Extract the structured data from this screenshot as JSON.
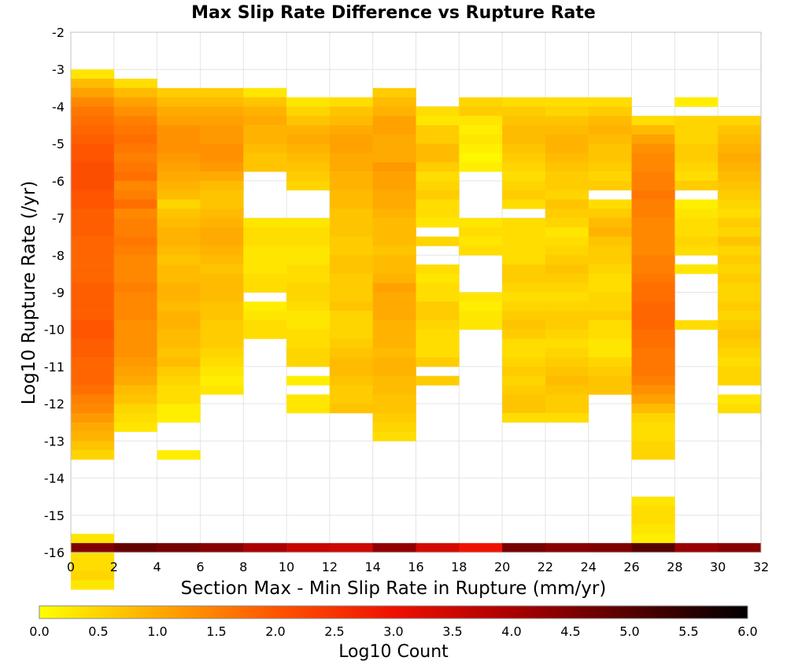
{
  "chart_data": {
    "type": "heatmap",
    "title": "Max Slip Rate Difference vs Rupture Rate",
    "xlabel": "Section Max - Min Slip Rate in Rupture (mm/yr)",
    "ylabel": "Log10 Rupture Rate (/yr)",
    "xlim": [
      0,
      32
    ],
    "ylim": [
      -16,
      -2
    ],
    "x_ticks": [
      "0",
      "2",
      "4",
      "6",
      "8",
      "10",
      "12",
      "14",
      "16",
      "18",
      "20",
      "22",
      "24",
      "26",
      "28",
      "30",
      "32"
    ],
    "y_ticks": [
      "-2",
      "-3",
      "-4",
      "-5",
      "-6",
      "-7",
      "-8",
      "-9",
      "-10",
      "-11",
      "-12",
      "-13",
      "-14",
      "-15",
      "-16"
    ],
    "x_bin_width": 2,
    "y_bin_height": 0.25,
    "grid": true,
    "colorbar": {
      "label": "Log10 Count",
      "min": 0,
      "max": 6,
      "ticks": [
        "0.0",
        "0.5",
        "1.0",
        "1.5",
        "2.0",
        "2.5",
        "3.0",
        "3.5",
        "4.0",
        "4.5",
        "5.0",
        "5.5",
        "6.0"
      ],
      "colors": [
        "#ffff00",
        "#ffaa00",
        "#ff5500",
        "#ee1100",
        "#aa0000",
        "#550000",
        "#000000"
      ]
    },
    "columns": [
      {
        "x_start": 0,
        "y_top": -3.0,
        "values": [
          0.3,
          0.8,
          1.1,
          1.4,
          1.6,
          1.7,
          1.8,
          1.9,
          2.0,
          2.0,
          2.1,
          2.1,
          2.1,
          2.0,
          2.0,
          1.9,
          1.9,
          1.9,
          1.8,
          1.8,
          1.8,
          1.8,
          1.8,
          1.9,
          1.9,
          1.9,
          1.9,
          2.0,
          2.0,
          1.9,
          1.9,
          1.8,
          1.8,
          1.8,
          1.7,
          1.5,
          1.4,
          1.2,
          1.0,
          0.9,
          0.7,
          0.5,
          null,
          null,
          null,
          null,
          null,
          null,
          null,
          null,
          0.3,
          0.4,
          0.4,
          0.4,
          0.5,
          0.3
        ]
      },
      {
        "x_start": 2,
        "y_top": -3.25,
        "values": [
          0.4,
          0.8,
          1.1,
          1.3,
          1.5,
          1.6,
          1.7,
          1.6,
          1.5,
          1.6,
          1.7,
          1.4,
          1.5,
          1.7,
          1.4,
          1.5,
          1.5,
          1.6,
          1.5,
          1.4,
          1.4,
          1.4,
          1.5,
          1.4,
          1.4,
          1.4,
          1.3,
          1.3,
          1.3,
          1.3,
          1.2,
          1.1,
          1.0,
          0.8,
          0.7,
          0.5,
          0.4,
          0.3
        ]
      },
      {
        "x_start": 4,
        "y_top": -3.5,
        "values": [
          0.6,
          0.8,
          1.0,
          1.1,
          1.3,
          1.3,
          1.3,
          1.2,
          1.1,
          1.0,
          0.9,
          0.8,
          0.5,
          0.7,
          0.8,
          0.9,
          0.9,
          0.8,
          0.7,
          0.8,
          0.8,
          0.9,
          0.9,
          0.8,
          0.9,
          0.9,
          0.8,
          0.8,
          0.7,
          0.8,
          0.6,
          0.5,
          0.4,
          0.4,
          0.2,
          0.2,
          null,
          null,
          null,
          0.2
        ]
      },
      {
        "x_start": 6,
        "y_top": -3.5,
        "values": [
          0.6,
          0.8,
          1.0,
          1.1,
          1.2,
          1.2,
          1.3,
          1.3,
          1.2,
          1.0,
          0.8,
          0.7,
          0.7,
          0.8,
          0.9,
          1.0,
          1.0,
          0.9,
          0.8,
          0.7,
          0.8,
          0.8,
          0.8,
          0.7,
          0.7,
          0.6,
          0.6,
          0.6,
          0.5,
          0.4,
          0.3,
          0.2,
          0.3
        ]
      },
      {
        "x_start": 8,
        "y_top": -3.5,
        "values": [
          0.3,
          0.7,
          0.9,
          1.0,
          0.9,
          0.9,
          0.8,
          0.7,
          0.7,
          null,
          null,
          null,
          null,
          null,
          0.3,
          0.4,
          0.4,
          0.3,
          0.3,
          0.3,
          0.4,
          0.4,
          null,
          0.2,
          0.3,
          0.4,
          0.4
        ]
      },
      {
        "x_start": 10,
        "y_top": -3.75,
        "values": [
          0.3,
          0.5,
          0.7,
          0.9,
          1.0,
          0.9,
          0.8,
          0.7,
          0.6,
          0.5,
          null,
          null,
          null,
          0.3,
          0.4,
          0.4,
          0.3,
          0.3,
          0.4,
          0.4,
          0.5,
          0.5,
          0.4,
          0.3,
          0.3,
          0.4,
          0.4,
          0.5,
          0.5,
          null,
          0.2,
          null,
          0.3,
          0.3
        ]
      },
      {
        "x_start": 12,
        "y_top": -3.75,
        "values": [
          0.4,
          0.7,
          0.8,
          1.0,
          1.1,
          1.1,
          1.0,
          1.0,
          0.9,
          0.9,
          0.8,
          0.8,
          0.7,
          0.7,
          0.7,
          0.6,
          0.6,
          0.7,
          0.7,
          0.6,
          0.6,
          0.6,
          0.7,
          0.5,
          0.5,
          0.5,
          0.6,
          0.7,
          0.8,
          0.8,
          0.7,
          0.6,
          0.6,
          0.7
        ]
      },
      {
        "x_start": 14,
        "y_top": -3.5,
        "values": [
          0.6,
          0.8,
          0.9,
          1.1,
          1.1,
          1.0,
          1.0,
          1.0,
          1.2,
          1.1,
          1.1,
          1.0,
          1.0,
          0.9,
          0.8,
          0.8,
          0.8,
          0.7,
          0.8,
          0.8,
          0.9,
          1.1,
          1.0,
          1.0,
          1.0,
          0.9,
          0.9,
          0.9,
          0.8,
          0.9,
          0.9,
          0.8,
          0.8,
          0.7,
          0.7,
          0.6,
          0.5,
          0.4
        ]
      },
      {
        "x_start": 16,
        "y_top": -4.0,
        "values": [
          0.4,
          0.3,
          0.6,
          0.6,
          0.8,
          0.8,
          0.6,
          0.4,
          0.5,
          0.6,
          0.4,
          0.4,
          0.3,
          null,
          0.5,
          null,
          null,
          0.4,
          0.3,
          0.4,
          0.4,
          0.6,
          0.6,
          0.5,
          0.4,
          0.4,
          0.4,
          0.6,
          null,
          0.6
        ]
      },
      {
        "x_start": 18,
        "y_top": -3.75,
        "values": [
          0.5,
          0.6,
          0.3,
          0.2,
          0.3,
          0.2,
          0.1,
          0.2,
          null,
          null,
          null,
          null,
          null,
          0.3,
          0.4,
          0.3,
          0.4,
          null,
          null,
          null,
          null,
          0.3,
          0.2,
          0.3,
          0.3
        ]
      },
      {
        "x_start": 20,
        "y_top": -3.75,
        "values": [
          0.4,
          0.6,
          0.7,
          0.8,
          0.8,
          0.7,
          0.6,
          0.5,
          0.4,
          0.5,
          0.6,
          0.4,
          null,
          0.4,
          0.4,
          0.4,
          0.4,
          0.4,
          0.6,
          0.6,
          0.5,
          0.4,
          0.5,
          0.6,
          0.7,
          0.6,
          0.4,
          0.4,
          0.5,
          0.6,
          0.5,
          0.6,
          0.7,
          0.7,
          0.4
        ]
      },
      {
        "x_start": 22,
        "y_top": -3.75,
        "values": [
          0.4,
          0.5,
          0.7,
          0.8,
          0.9,
          0.9,
          0.8,
          0.7,
          0.6,
          0.6,
          0.5,
          0.7,
          0.6,
          0.5,
          0.3,
          0.4,
          0.5,
          0.6,
          0.7,
          0.6,
          0.5,
          0.4,
          0.5,
          0.6,
          0.6,
          0.5,
          0.4,
          0.5,
          0.6,
          0.7,
          0.8,
          0.7,
          0.6,
          0.6,
          0.4
        ]
      },
      {
        "x_start": 24,
        "y_top": -3.75,
        "values": [
          0.4,
          0.6,
          0.8,
          0.9,
          0.8,
          0.7,
          0.7,
          0.6,
          0.5,
          0.6,
          null,
          0.4,
          0.6,
          0.8,
          0.9,
          0.7,
          0.6,
          0.6,
          0.5,
          0.4,
          0.4,
          0.5,
          0.5,
          0.6,
          0.4,
          0.4,
          0.3,
          0.3,
          0.5,
          0.6,
          0.7,
          0.7
        ]
      },
      {
        "x_start": 26,
        "y_top": -4.25,
        "values": [
          0.4,
          0.8,
          1.1,
          1.3,
          1.4,
          1.4,
          1.5,
          1.5,
          1.6,
          1.5,
          1.5,
          1.4,
          1.4,
          1.4,
          1.4,
          1.5,
          1.5,
          1.6,
          1.7,
          1.7,
          1.8,
          1.8,
          1.8,
          1.7,
          1.7,
          1.6,
          1.6,
          1.6,
          1.5,
          1.3,
          1.1,
          0.8,
          0.5,
          0.4,
          0.4,
          0.5,
          0.5,
          null,
          null,
          null,
          null,
          0.3,
          0.4,
          0.4,
          0.3,
          0.2
        ]
      },
      {
        "x_start": 28,
        "y_top": -3.75,
        "values": [
          0.2,
          null,
          0.5,
          0.5,
          0.5,
          0.6,
          0.6,
          0.5,
          0.4,
          0.6,
          null,
          0.2,
          0.3,
          0.4,
          0.4,
          0.5,
          0.4,
          null,
          0.3,
          null,
          null,
          null,
          null,
          null,
          0.4
        ]
      },
      {
        "x_start": 30,
        "y_top": -4.25,
        "values": [
          0.5,
          0.7,
          0.8,
          0.9,
          1.0,
          0.9,
          0.8,
          0.7,
          0.6,
          0.5,
          0.4,
          0.6,
          0.5,
          0.7,
          0.5,
          0.6,
          0.5,
          0.6,
          0.5,
          0.5,
          0.6,
          0.5,
          0.6,
          0.7,
          0.6,
          0.5,
          0.4,
          0.5,
          0.5,
          null,
          0.3,
          0.4
        ]
      }
    ],
    "floor_row": {
      "y_start": -16,
      "values": [
        4.5,
        4.8,
        4.6,
        4.4,
        4.0,
        3.6,
        3.5,
        4.3,
        3.4,
        3.0,
        4.6,
        4.4,
        4.5,
        5.0,
        4.2,
        4.4
      ]
    }
  }
}
